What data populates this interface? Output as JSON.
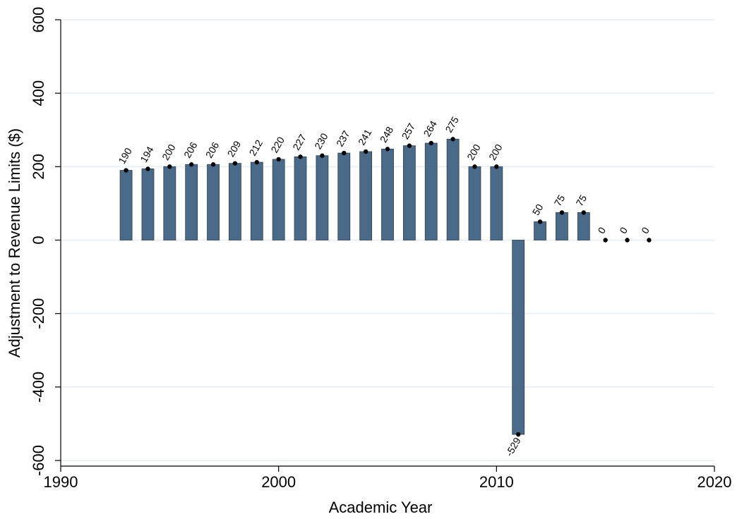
{
  "chart_data": {
    "type": "bar",
    "xlabel": "Academic Year",
    "ylabel": "Adjustment to Revenue Limits ($)",
    "xlim": [
      1990,
      2020
    ],
    "ylim": [
      -600,
      600
    ],
    "xticks": [
      "1990",
      "2000",
      "2010",
      "2020"
    ],
    "yticks": [
      "-600",
      "-400",
      "-200",
      "0",
      "200",
      "400",
      "600"
    ],
    "grid": true,
    "bar_color": "#4a6a8a",
    "marker_color": "#000000",
    "x": [
      1993,
      1994,
      1995,
      1996,
      1997,
      1998,
      1999,
      2000,
      2001,
      2002,
      2003,
      2004,
      2005,
      2006,
      2007,
      2008,
      2009,
      2010,
      2011,
      2012,
      2013,
      2014,
      2015,
      2016,
      2017
    ],
    "values": [
      190,
      194,
      200,
      206,
      206,
      209,
      212,
      220,
      227,
      230,
      237,
      241,
      248,
      257,
      264,
      275,
      200,
      200,
      -529,
      50,
      75,
      75,
      0,
      0,
      0
    ],
    "labels": [
      "190",
      "194",
      "200",
      "206",
      "206",
      "209",
      "212",
      "220",
      "227",
      "230",
      "237",
      "241",
      "248",
      "257",
      "264",
      "275",
      "200",
      "200",
      "-529",
      "50",
      "75",
      "75",
      "0",
      "0",
      "0"
    ]
  }
}
